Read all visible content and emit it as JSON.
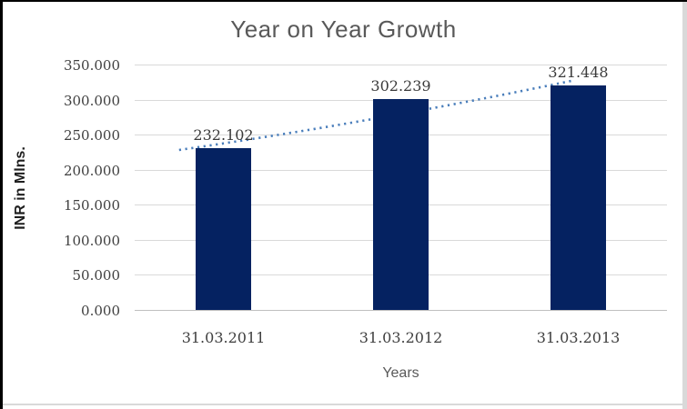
{
  "chart_data": {
    "type": "bar",
    "title": "Year on Year Growth",
    "categories": [
      "31.03.2011",
      "31.03.2012",
      "31.03.2013"
    ],
    "values": [
      232.102,
      302.239,
      321.448
    ],
    "data_labels": [
      "232.102",
      "302.239",
      "321.448"
    ],
    "xlabel": "Years",
    "ylabel": "INR in Mlns.",
    "ylim": [
      0,
      350
    ],
    "ytick_step": 50,
    "ytick_labels": [
      "0.000",
      "50.000",
      "100.000",
      "150.000",
      "200.000",
      "250.000",
      "300.000",
      "350.000"
    ],
    "grid": true,
    "legend": "none",
    "bar_color": "#052261",
    "gridline_color": "#d9d9d9",
    "axis_line_color": "#bfbfbf",
    "title_color": "#595959",
    "label_color": "#404040",
    "trendline": {
      "type": "linear",
      "style": "dotted",
      "color": "#4a7ebb"
    }
  }
}
